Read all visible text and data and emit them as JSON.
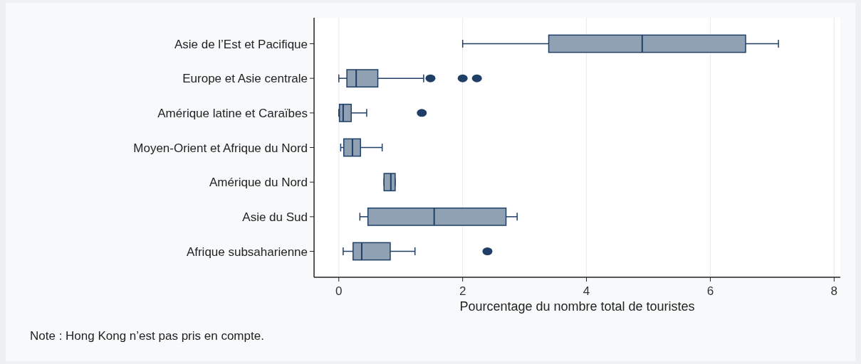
{
  "chart_data": {
    "type": "box",
    "orientation": "horizontal",
    "xlabel": "Pourcentage du nombre total de touristes",
    "annotations": [
      "Note : Hong Kong n’est pas pris en compte."
    ],
    "categories": [
      "Asie de l’Est et Pacifique",
      "Europe et Asie centrale",
      "Amérique latine et Caraïbes",
      "Moyen-Orient et Afrique du Nord",
      "Amérique du Nord",
      "Asie du Sud",
      "Afrique subsaharienne"
    ],
    "series": [
      {
        "color": "#8fa1b3",
        "boxes": [
          {
            "low": 2.0,
            "q1": 3.39,
            "median": 4.9,
            "q3": 6.57,
            "high": 7.1
          },
          {
            "low": 0.0,
            "q1": 0.13,
            "median": 0.28,
            "q3": 0.63,
            "high": 1.37,
            "outliers": [
              1.48,
              2.0,
              2.23
            ]
          },
          {
            "low": 0.0,
            "q1": 0.01,
            "median": 0.07,
            "q3": 0.2,
            "high": 0.45,
            "outliers": [
              1.34
            ]
          },
          {
            "low": 0.03,
            "q1": 0.08,
            "median": 0.22,
            "q3": 0.35,
            "high": 0.7
          },
          {
            "low": 0.73,
            "q1": 0.73,
            "median": 0.84,
            "q3": 0.91,
            "high": 0.91
          },
          {
            "low": 0.34,
            "q1": 0.47,
            "median": 1.54,
            "q3": 2.7,
            "high": 2.88
          },
          {
            "low": 0.07,
            "q1": 0.23,
            "median": 0.37,
            "q3": 0.83,
            "high": 1.23,
            "outliers": [
              2.4
            ]
          }
        ]
      }
    ],
    "xlim": [
      -0.4,
      8.1
    ],
    "xticks": [
      0,
      2,
      4,
      6,
      8
    ],
    "grid": "x"
  }
}
